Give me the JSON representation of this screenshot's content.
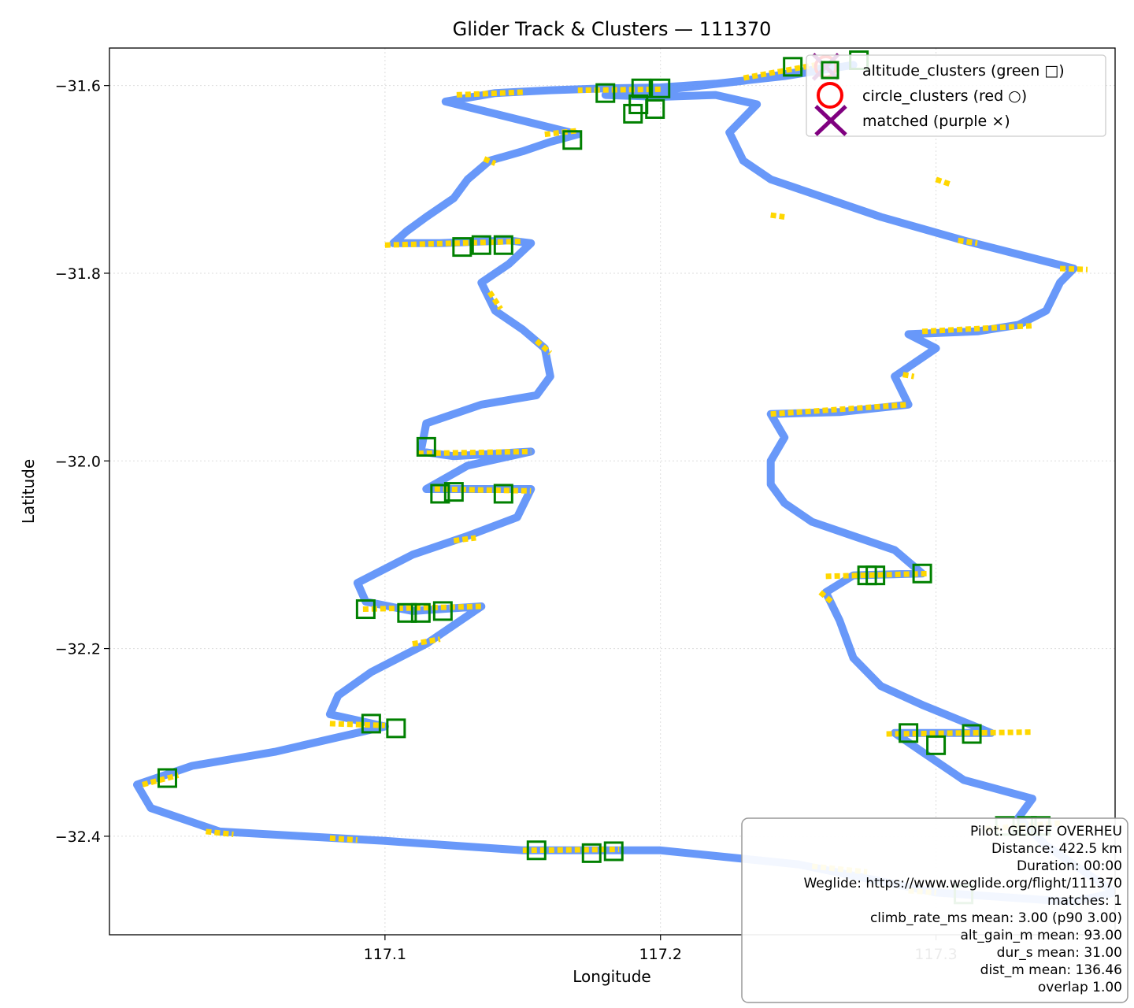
{
  "chart_data": {
    "type": "scatter",
    "title": "Glider Track & Clusters — 111370",
    "xlabel": "Longitude",
    "ylabel": "Latitude",
    "xlim": [
      117.0,
      117.365
    ],
    "ylim": [
      -32.505,
      -31.56
    ],
    "xticks": [
      117.1,
      117.2,
      117.3
    ],
    "xtick_labels": [
      "117.1",
      "117.2",
      "117.3"
    ],
    "yticks": [
      -31.6,
      -31.8,
      -32.0,
      -32.2,
      -32.4
    ],
    "ytick_labels": [
      "−31.6",
      "−31.8",
      "−32.0",
      "−32.2",
      "−32.4"
    ],
    "grid": true,
    "legend_position": "top-right",
    "legend": [
      {
        "label": "altitude_clusters (green □)",
        "marker": "square",
        "color": "#008000"
      },
      {
        "label": "circle_clusters (red ○)",
        "marker": "circle",
        "color": "#ff0000"
      },
      {
        "label": "matched (purple ×)",
        "marker": "x",
        "color": "#800080"
      }
    ],
    "colors": {
      "track": "#5b8ff9",
      "climb": "#ffd700",
      "altitude": "#008000",
      "circle": "#ff0000",
      "matched": "#800080"
    },
    "track": {
      "name": "track",
      "points": [
        [
          117.27,
          -31.578
        ],
        [
          117.245,
          -31.59
        ],
        [
          117.22,
          -31.598
        ],
        [
          117.2,
          -31.602
        ],
        [
          117.18,
          -31.603
        ],
        [
          117.16,
          -31.605
        ],
        [
          117.14,
          -31.608
        ],
        [
          117.122,
          -31.617
        ],
        [
          117.17,
          -31.652
        ],
        [
          117.16,
          -31.66
        ],
        [
          117.15,
          -31.67
        ],
        [
          117.138,
          -31.68
        ],
        [
          117.13,
          -31.7
        ],
        [
          117.125,
          -31.72
        ],
        [
          117.115,
          -31.74
        ],
        [
          117.108,
          -31.755
        ],
        [
          117.103,
          -31.768
        ],
        [
          117.12,
          -31.768
        ],
        [
          117.145,
          -31.765
        ],
        [
          117.153,
          -31.768
        ],
        [
          117.145,
          -31.79
        ],
        [
          117.135,
          -31.81
        ],
        [
          117.14,
          -31.84
        ],
        [
          117.15,
          -31.86
        ],
        [
          117.158,
          -31.88
        ],
        [
          117.16,
          -31.91
        ],
        [
          117.155,
          -31.93
        ],
        [
          117.135,
          -31.94
        ],
        [
          117.115,
          -31.96
        ],
        [
          117.113,
          -31.99
        ],
        [
          117.125,
          -31.995
        ],
        [
          117.153,
          -31.99
        ],
        [
          117.13,
          -32.005
        ],
        [
          117.115,
          -32.03
        ],
        [
          117.153,
          -32.03
        ],
        [
          117.148,
          -32.06
        ],
        [
          117.13,
          -32.08
        ],
        [
          117.11,
          -32.1
        ],
        [
          117.09,
          -32.13
        ],
        [
          117.093,
          -32.15
        ],
        [
          117.11,
          -32.16
        ],
        [
          117.135,
          -32.155
        ],
        [
          117.115,
          -32.195
        ],
        [
          117.095,
          -32.225
        ],
        [
          117.083,
          -32.25
        ],
        [
          117.08,
          -32.27
        ],
        [
          117.1,
          -32.283
        ],
        [
          117.06,
          -32.31
        ],
        [
          117.03,
          -32.325
        ],
        [
          117.01,
          -32.345
        ],
        [
          117.015,
          -32.37
        ],
        [
          117.04,
          -32.395
        ],
        [
          117.1,
          -32.405
        ],
        [
          117.15,
          -32.415
        ],
        [
          117.2,
          -32.415
        ],
        [
          117.25,
          -32.43
        ],
        [
          117.3,
          -32.46
        ],
        [
          117.35,
          -32.47
        ],
        [
          117.365,
          -32.46
        ],
        [
          117.34,
          -32.41
        ],
        [
          117.33,
          -32.38
        ],
        [
          117.335,
          -32.36
        ],
        [
          117.31,
          -32.34
        ],
        [
          117.295,
          -32.31
        ],
        [
          117.285,
          -32.29
        ],
        [
          117.32,
          -32.29
        ],
        [
          117.295,
          -32.26
        ],
        [
          117.28,
          -32.24
        ],
        [
          117.27,
          -32.21
        ],
        [
          117.265,
          -32.17
        ],
        [
          117.26,
          -32.14
        ],
        [
          117.27,
          -32.122
        ],
        [
          117.295,
          -32.12
        ],
        [
          117.285,
          -32.095
        ],
        [
          117.27,
          -32.08
        ],
        [
          117.255,
          -32.065
        ],
        [
          117.245,
          -32.045
        ],
        [
          117.24,
          -32.025
        ],
        [
          117.24,
          -32.0
        ],
        [
          117.245,
          -31.975
        ],
        [
          117.24,
          -31.95
        ],
        [
          117.265,
          -31.948
        ],
        [
          117.29,
          -31.94
        ],
        [
          117.285,
          -31.91
        ],
        [
          117.3,
          -31.88
        ],
        [
          117.29,
          -31.865
        ],
        [
          117.315,
          -31.862
        ],
        [
          117.33,
          -31.855
        ],
        [
          117.34,
          -31.84
        ],
        [
          117.345,
          -31.81
        ],
        [
          117.35,
          -31.795
        ],
        [
          117.33,
          -31.78
        ],
        [
          117.31,
          -31.765
        ],
        [
          117.28,
          -31.74
        ],
        [
          117.26,
          -31.72
        ],
        [
          117.24,
          -31.7
        ],
        [
          117.23,
          -31.68
        ],
        [
          117.225,
          -31.65
        ],
        [
          117.235,
          -31.62
        ],
        [
          117.22,
          -31.61
        ],
        [
          117.2,
          -31.612
        ],
        [
          117.18,
          -31.61
        ],
        [
          117.2,
          -31.605
        ],
        [
          117.23,
          -31.595
        ],
        [
          117.262,
          -31.58
        ]
      ]
    },
    "climb_segments": [
      [
        117.26,
        -31.576,
        117.23,
        -31.592
      ],
      [
        117.2,
        -31.604,
        117.17,
        -31.605
      ],
      [
        117.15,
        -31.607,
        117.125,
        -31.61
      ],
      [
        117.158,
        -31.652,
        117.17,
        -31.648
      ],
      [
        117.136,
        -31.678,
        117.14,
        -31.683
      ],
      [
        117.1,
        -31.77,
        117.15,
        -31.766
      ],
      [
        117.138,
        -31.82,
        117.142,
        -31.838
      ],
      [
        117.155,
        -31.872,
        117.16,
        -31.885
      ],
      [
        117.112,
        -31.992,
        117.153,
        -31.99
      ],
      [
        117.118,
        -32.03,
        117.153,
        -32.032
      ],
      [
        117.125,
        -32.085,
        117.133,
        -32.082
      ],
      [
        117.092,
        -32.158,
        117.136,
        -32.155
      ],
      [
        117.11,
        -32.195,
        117.12,
        -32.19
      ],
      [
        117.08,
        -32.28,
        117.1,
        -32.282
      ],
      [
        117.012,
        -32.345,
        117.025,
        -32.335
      ],
      [
        117.035,
        -32.395,
        117.045,
        -32.398
      ],
      [
        117.08,
        -32.402,
        117.09,
        -32.404
      ],
      [
        117.15,
        -32.415,
        117.185,
        -32.414
      ],
      [
        117.255,
        -32.432,
        117.275,
        -32.438
      ],
      [
        117.29,
        -32.458,
        117.3,
        -32.46
      ],
      [
        117.26,
        -32.123,
        117.298,
        -32.12
      ],
      [
        117.258,
        -32.14,
        117.262,
        -32.15
      ],
      [
        117.282,
        -32.291,
        117.335,
        -32.289
      ],
      [
        117.318,
        -32.392,
        117.345,
        -32.386
      ],
      [
        117.24,
        -31.95,
        117.29,
        -31.94
      ],
      [
        117.295,
        -31.862,
        117.335,
        -31.856
      ],
      [
        117.345,
        -31.795,
        117.355,
        -31.796
      ],
      [
        117.288,
        -31.908,
        117.292,
        -31.91
      ],
      [
        117.24,
        -31.738,
        117.245,
        -31.74
      ],
      [
        117.308,
        -31.765,
        117.315,
        -31.768
      ],
      [
        117.3,
        -31.7,
        117.305,
        -31.705
      ]
    ],
    "altitude_clusters": [
      [
        117.248,
        -31.58
      ],
      [
        117.272,
        -31.573
      ],
      [
        117.18,
        -31.608
      ],
      [
        117.193,
        -31.603
      ],
      [
        117.2,
        -31.603
      ],
      [
        117.198,
        -31.625
      ],
      [
        117.19,
        -31.63
      ],
      [
        117.168,
        -31.658
      ],
      [
        117.128,
        -31.772
      ],
      [
        117.135,
        -31.77
      ],
      [
        117.143,
        -31.77
      ],
      [
        117.115,
        -31.985
      ],
      [
        117.12,
        -32.035
      ],
      [
        117.125,
        -32.033
      ],
      [
        117.143,
        -32.035
      ],
      [
        117.093,
        -32.158
      ],
      [
        117.108,
        -32.162
      ],
      [
        117.113,
        -32.162
      ],
      [
        117.121,
        -32.16
      ],
      [
        117.095,
        -32.28
      ],
      [
        117.104,
        -32.285
      ],
      [
        117.021,
        -32.338
      ],
      [
        117.155,
        -32.415
      ],
      [
        117.175,
        -32.418
      ],
      [
        117.183,
        -32.416
      ],
      [
        117.275,
        -32.122
      ],
      [
        117.278,
        -32.122
      ],
      [
        117.295,
        -32.12
      ],
      [
        117.29,
        -32.29
      ],
      [
        117.3,
        -32.303
      ],
      [
        117.313,
        -32.291
      ],
      [
        117.325,
        -32.389
      ],
      [
        117.333,
        -32.389
      ],
      [
        117.338,
        -32.389
      ],
      [
        117.31,
        -32.462
      ],
      [
        117.192,
        -31.62
      ]
    ],
    "circle_clusters": [
      [
        117.26,
        -31.58
      ]
    ],
    "matched": [
      [
        117.26,
        -31.58
      ]
    ],
    "info_box": {
      "position": "bottom-right",
      "lines": [
        "Pilot: GEOFF OVERHEU",
        "Distance: 422.5 km",
        "Duration: 00:00",
        "Weglide: https://www.weglide.org/flight/111370",
        "matches: 1",
        "climb_rate_ms mean: 3.00 (p90 3.00)",
        "alt_gain_m mean: 93.00",
        "dur_s mean: 31.00",
        "dist_m mean: 136.46",
        "overlap 1.00"
      ]
    }
  }
}
